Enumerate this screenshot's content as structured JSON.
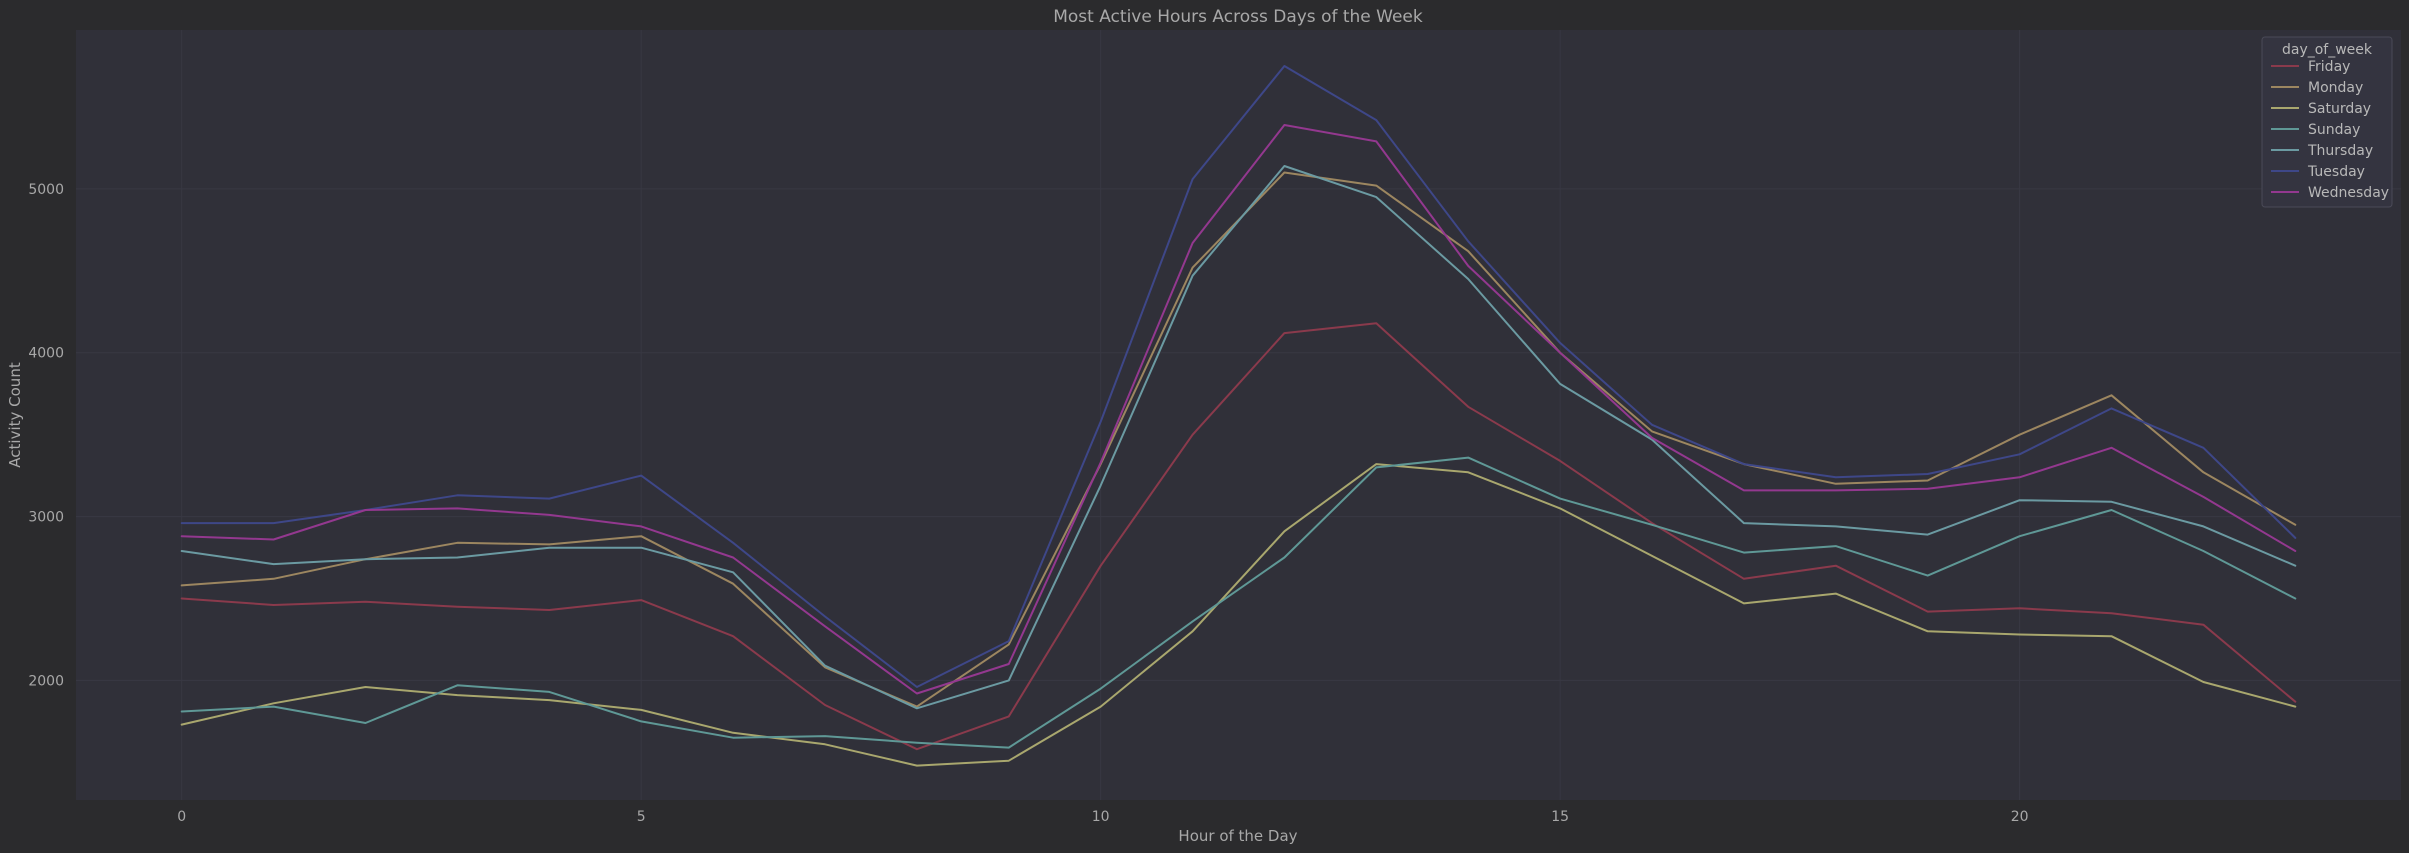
{
  "chart_data": {
    "type": "line",
    "title": "Most Active Hours Across Days of the Week",
    "xlabel": "Hour of the Day",
    "ylabel": "Activity Count",
    "xlim": [
      -1.15,
      24.15
    ],
    "ylim": [
      1270,
      5970
    ],
    "xticks": [
      0,
      5,
      10,
      15,
      20
    ],
    "yticks": [
      2000,
      3000,
      4000,
      5000
    ],
    "grid": true,
    "legend": {
      "title": "day_of_week",
      "placement": "top-right"
    },
    "x": [
      0,
      1,
      2,
      3,
      4,
      5,
      6,
      7,
      8,
      9,
      10,
      11,
      12,
      13,
      14,
      15,
      16,
      17,
      18,
      19,
      20,
      21,
      22,
      23
    ],
    "series": [
      {
        "name": "Friday",
        "color": "#8a3a4c",
        "values": [
          2500,
          2460,
          2480,
          2450,
          2430,
          2490,
          2270,
          1850,
          1580,
          1780,
          2700,
          3500,
          4120,
          4180,
          3670,
          3340,
          2960,
          2620,
          2700,
          2420,
          2440,
          2410,
          2340,
          1870
        ]
      },
      {
        "name": "Monday",
        "color": "#9c8660",
        "values": [
          2580,
          2620,
          2740,
          2840,
          2830,
          2880,
          2590,
          2080,
          1840,
          2220,
          3320,
          4520,
          5100,
          5020,
          4620,
          4000,
          3520,
          3320,
          3200,
          3220,
          3500,
          3740,
          3270,
          2950
        ]
      },
      {
        "name": "Saturday",
        "color": "#a9a76e",
        "values": [
          1730,
          1860,
          1960,
          1910,
          1880,
          1820,
          1680,
          1610,
          1480,
          1510,
          1840,
          2300,
          2910,
          3320,
          3270,
          3050,
          2760,
          2470,
          2530,
          2300,
          2280,
          2270,
          1990,
          1840
        ]
      },
      {
        "name": "Sunday",
        "color": "#5f9896",
        "values": [
          1810,
          1840,
          1740,
          1970,
          1930,
          1750,
          1650,
          1660,
          1620,
          1590,
          1950,
          2360,
          2750,
          3300,
          3360,
          3110,
          2950,
          2780,
          2820,
          2640,
          2880,
          3040,
          2790,
          2500
        ]
      },
      {
        "name": "Thursday",
        "color": "#6b9aa2",
        "values": [
          2790,
          2710,
          2740,
          2750,
          2810,
          2810,
          2660,
          2090,
          1830,
          2000,
          3190,
          4470,
          5140,
          4950,
          4450,
          3810,
          3470,
          2960,
          2940,
          2890,
          3100,
          3090,
          2940,
          2700
        ]
      },
      {
        "name": "Tuesday",
        "color": "#3e4788",
        "values": [
          2960,
          2960,
          3040,
          3130,
          3110,
          3250,
          2840,
          2390,
          1960,
          2240,
          3580,
          5060,
          5750,
          5420,
          4680,
          4060,
          3560,
          3320,
          3240,
          3260,
          3380,
          3660,
          3420,
          2870
        ]
      },
      {
        "name": "Wednesday",
        "color": "#93388f",
        "values": [
          2880,
          2860,
          3040,
          3050,
          3010,
          2940,
          2750,
          2330,
          1920,
          2100,
          3330,
          4670,
          5390,
          5290,
          4530,
          4000,
          3480,
          3160,
          3160,
          3170,
          3240,
          3420,
          3120,
          2790
        ]
      }
    ]
  }
}
